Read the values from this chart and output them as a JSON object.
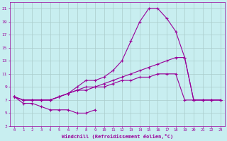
{
  "x_full": [
    0,
    1,
    2,
    3,
    4,
    5,
    6,
    7,
    8,
    9,
    10,
    11,
    12,
    13,
    14,
    15,
    16,
    17,
    18,
    19,
    20,
    21,
    22,
    23
  ],
  "line_peak": [
    7.5,
    7.0,
    7.0,
    7.0,
    7.0,
    7.5,
    8.0,
    9.0,
    10.0,
    10.0,
    10.5,
    11.5,
    13.0,
    16.0,
    19.0,
    21.0,
    21.0,
    19.5,
    17.5,
    13.5,
    7.0,
    7.0,
    7.0,
    7.0
  ],
  "line_mid": [
    7.5,
    7.0,
    7.0,
    7.0,
    7.0,
    7.5,
    8.0,
    8.5,
    9.0,
    9.0,
    9.5,
    10.0,
    10.5,
    11.0,
    11.5,
    12.0,
    12.5,
    13.0,
    13.5,
    13.5,
    7.0,
    7.0,
    7.0,
    7.0
  ],
  "line_low": [
    7.5,
    7.0,
    7.0,
    7.0,
    7.0,
    7.5,
    8.0,
    8.5,
    8.5,
    9.0,
    9.0,
    9.5,
    10.0,
    10.0,
    10.5,
    10.5,
    11.0,
    11.0,
    11.0,
    7.0,
    7.0,
    7.0,
    7.0,
    7.0
  ],
  "x_short": [
    0,
    1,
    2,
    3,
    4,
    5,
    6,
    7,
    8,
    9
  ],
  "line_bottom": [
    7.5,
    6.5,
    6.5,
    6.0,
    5.5,
    5.5,
    5.5,
    5.0,
    5.0,
    5.5
  ],
  "line_color": "#990099",
  "bg_color": "#c8eef0",
  "grid_color": "#aacccc",
  "xlabel": "Windchill (Refroidissement éolien,°C)",
  "ylim": [
    3,
    22
  ],
  "yticks": [
    3,
    5,
    7,
    9,
    11,
    13,
    15,
    17,
    19,
    21
  ],
  "xlim": [
    -0.5,
    23.5
  ]
}
